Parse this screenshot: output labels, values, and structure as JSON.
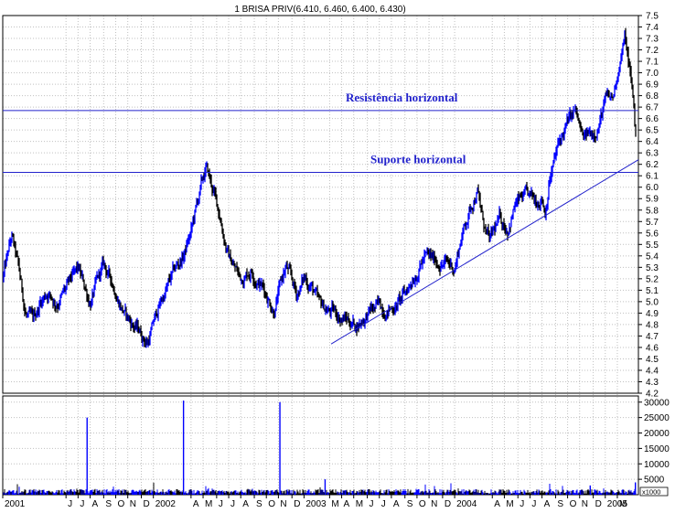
{
  "chart_data": {
    "type": "line",
    "title": "1 BRISA PRIV(6.410, 6.460, 6.400, 6.430)",
    "price_axis": {
      "min": 4.2,
      "max": 7.5,
      "ticks": [
        "7.5",
        "7.4",
        "7.3",
        "7.2",
        "7.1",
        "7.0",
        "6.9",
        "6.8",
        "6.7",
        "6.6",
        "6.5",
        "6.4",
        "6.3",
        "6.2",
        "6.1",
        "6.0",
        "5.9",
        "5.8",
        "5.7",
        "5.6",
        "5.5",
        "5.4",
        "5.3",
        "5.2",
        "5.1",
        "5.0",
        "4.9",
        "4.8",
        "4.7",
        "4.6",
        "4.5",
        "4.4",
        "4.3",
        "4.2"
      ]
    },
    "volume_axis": {
      "min": 0,
      "max": 32000,
      "ticks": [
        "30000",
        "25000",
        "20000",
        "15000",
        "10000",
        "5000"
      ],
      "unit_label": "x1000"
    },
    "x_axis": {
      "start": 2001.0,
      "end": 2005.22,
      "labels": [
        {
          "t": 2001.0,
          "text": "2001"
        },
        {
          "t": 2001.42,
          "text": "J"
        },
        {
          "t": 2001.5,
          "text": "J"
        },
        {
          "t": 2001.58,
          "text": "A"
        },
        {
          "t": 2001.67,
          "text": "S"
        },
        {
          "t": 2001.75,
          "text": "O"
        },
        {
          "t": 2001.83,
          "text": "N"
        },
        {
          "t": 2001.92,
          "text": "D"
        },
        {
          "t": 2002.0,
          "text": "2002"
        },
        {
          "t": 2002.25,
          "text": "A"
        },
        {
          "t": 2002.33,
          "text": "M"
        },
        {
          "t": 2002.42,
          "text": "J"
        },
        {
          "t": 2002.5,
          "text": "J"
        },
        {
          "t": 2002.58,
          "text": "A"
        },
        {
          "t": 2002.67,
          "text": "S"
        },
        {
          "t": 2002.75,
          "text": "O"
        },
        {
          "t": 2002.83,
          "text": "N"
        },
        {
          "t": 2002.92,
          "text": "D"
        },
        {
          "t": 2003.0,
          "text": "2003"
        },
        {
          "t": 2003.17,
          "text": "M"
        },
        {
          "t": 2003.25,
          "text": "A"
        },
        {
          "t": 2003.33,
          "text": "M"
        },
        {
          "t": 2003.42,
          "text": "J"
        },
        {
          "t": 2003.5,
          "text": "J"
        },
        {
          "t": 2003.58,
          "text": "A"
        },
        {
          "t": 2003.67,
          "text": "S"
        },
        {
          "t": 2003.75,
          "text": "O"
        },
        {
          "t": 2003.83,
          "text": "N"
        },
        {
          "t": 2003.92,
          "text": "D"
        },
        {
          "t": 2004.0,
          "text": "2004"
        },
        {
          "t": 2004.25,
          "text": "A"
        },
        {
          "t": 2004.33,
          "text": "M"
        },
        {
          "t": 2004.42,
          "text": "J"
        },
        {
          "t": 2004.5,
          "text": "J"
        },
        {
          "t": 2004.58,
          "text": "A"
        },
        {
          "t": 2004.67,
          "text": "S"
        },
        {
          "t": 2004.75,
          "text": "O"
        },
        {
          "t": 2004.83,
          "text": "N"
        },
        {
          "t": 2004.92,
          "text": "D"
        },
        {
          "t": 2005.0,
          "text": "2005"
        },
        {
          "t": 2005.08,
          "text": "M"
        }
      ]
    },
    "price_series": {
      "t": [
        2001.0,
        2001.06,
        2001.1,
        2001.15,
        2001.2,
        2001.25,
        2001.3,
        2001.35,
        2001.42,
        2001.5,
        2001.58,
        2001.67,
        2001.75,
        2001.83,
        2001.9,
        2001.96,
        2002.05,
        2002.12,
        2002.2,
        2002.25,
        2002.3,
        2002.35,
        2002.4,
        2002.45,
        2002.5,
        2002.58,
        2002.65,
        2002.72,
        2002.8,
        2002.88,
        2002.95,
        2003.0,
        2003.05,
        2003.1,
        2003.2,
        2003.28,
        2003.35,
        2003.42,
        2003.5,
        2003.58,
        2003.67,
        2003.75,
        2003.8,
        2003.85,
        2003.92,
        2004.0,
        2004.05,
        2004.1,
        2004.15,
        2004.18,
        2004.23,
        2004.3,
        2004.35,
        2004.4,
        2004.47,
        2004.53,
        2004.58,
        2004.6,
        2004.63,
        2004.7,
        2004.75,
        2004.8,
        2004.85,
        2004.9,
        2004.95,
        2005.0,
        2005.05,
        2005.1,
        2005.13,
        2005.16,
        2005.19,
        2005.2
      ],
      "close": [
        5.2,
        5.55,
        5.3,
        4.9,
        4.8,
        5.0,
        5.1,
        5.0,
        5.1,
        5.25,
        5.0,
        5.3,
        5.1,
        4.85,
        4.75,
        4.65,
        5.0,
        5.2,
        5.4,
        5.6,
        5.9,
        6.15,
        5.95,
        5.7,
        5.4,
        5.2,
        5.3,
        5.15,
        4.95,
        5.3,
        5.05,
        5.2,
        5.15,
        4.95,
        4.9,
        4.85,
        4.8,
        4.9,
        4.95,
        4.95,
        5.05,
        5.3,
        5.4,
        5.35,
        5.35,
        5.3,
        5.6,
        5.8,
        6.0,
        5.75,
        5.5,
        5.7,
        5.65,
        5.85,
        5.9,
        5.85,
        5.95,
        5.8,
        6.1,
        6.4,
        6.55,
        6.65,
        6.4,
        6.45,
        6.55,
        6.75,
        6.75,
        7.15,
        7.3,
        7.05,
        6.7,
        6.45
      ]
    },
    "volume_series": {
      "spikes": [
        {
          "t": 2001.56,
          "v": 25000
        },
        {
          "t": 2002.2,
          "v": 30500
        },
        {
          "t": 2002.84,
          "v": 30000
        },
        {
          "t": 2003.14,
          "v": 5000
        },
        {
          "t": 2004.9,
          "v": 3000
        },
        {
          "t": 2005.2,
          "v": 4000
        }
      ],
      "base_level": 1200
    },
    "lines": [
      {
        "type": "horizontal",
        "price": 6.67,
        "label": "Resistência horizontal"
      },
      {
        "type": "horizontal",
        "price": 6.13,
        "label": "Suporte horizontal"
      },
      {
        "type": "trend",
        "t1": 2003.18,
        "p1": 4.63,
        "t2": 2005.22,
        "p2": 6.24,
        "label": ""
      }
    ],
    "colors": {
      "up": "#0000ff",
      "down": "#000000",
      "lines": "#2222cc",
      "grid": "#c0c0c0",
      "axis": "#000000"
    },
    "grid": true
  }
}
